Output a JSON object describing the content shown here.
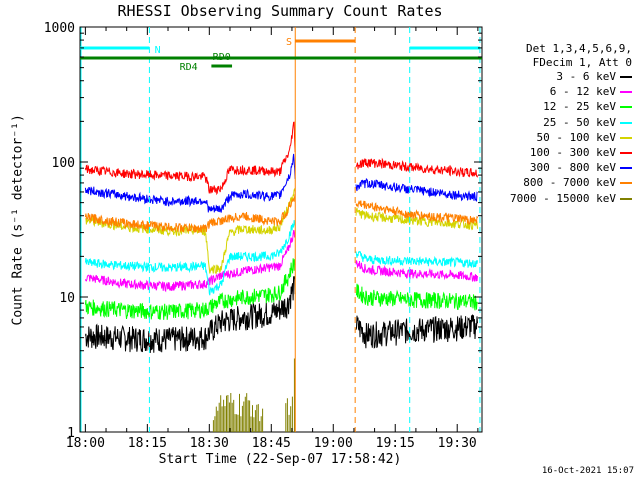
{
  "chart_data": {
    "type": "line",
    "title": "RHESSI Observing Summary Count Rates",
    "xlabel": "Start Time (22-Sep-07 17:58:42)",
    "ylabel_html": "Count Rate (s⁻¹ detector⁻¹)",
    "yscale": "log",
    "ylim": [
      1,
      1000
    ],
    "xlim_minutes": [
      -1.3,
      96
    ],
    "x_ticks": [
      {
        "label": "18:00",
        "t": 0
      },
      {
        "label": "18:15",
        "t": 15
      },
      {
        "label": "18:30",
        "t": 30
      },
      {
        "label": "18:45",
        "t": 45
      },
      {
        "label": "19:00",
        "t": 60
      },
      {
        "label": "19:15",
        "t": 75
      },
      {
        "label": "19:30",
        "t": 90
      }
    ],
    "y_ticks": [
      {
        "label": "1",
        "v": 1
      },
      {
        "label": "10",
        "v": 10
      },
      {
        "label": "100",
        "v": 100
      },
      {
        "label": "1000",
        "v": 1000
      }
    ],
    "legend_header": [
      "Det 1,3,4,5,6,9,",
      "FDecim 1, Att 0"
    ],
    "series": [
      {
        "name": "3 - 6 keV",
        "color": "#000000",
        "values": [
          [
            0,
            5.2
          ],
          [
            10,
            5.0
          ],
          [
            20,
            4.9
          ],
          [
            29,
            5.1
          ],
          [
            33,
            6.6
          ],
          [
            38,
            7.2
          ],
          [
            44,
            7.6
          ],
          [
            46,
            7.8
          ],
          [
            49,
            9.0
          ],
          [
            50.5,
            12
          ],
          [
            68,
            5.3
          ],
          [
            78,
            5.7
          ],
          [
            90,
            6.0
          ],
          [
            95,
            6.2
          ]
        ]
      },
      {
        "name": "6 - 12 keV",
        "color": "#ff00ff",
        "values": [
          [
            0,
            14
          ],
          [
            10,
            12.5
          ],
          [
            20,
            12
          ],
          [
            29,
            12.5
          ],
          [
            33,
            14.5
          ],
          [
            38,
            15.5
          ],
          [
            44,
            16.5
          ],
          [
            47,
            17
          ],
          [
            49,
            22
          ],
          [
            50.5,
            30
          ],
          [
            68,
            16
          ],
          [
            78,
            15
          ],
          [
            90,
            14.5
          ],
          [
            95,
            14
          ]
        ]
      },
      {
        "name": "12 - 25 keV",
        "color": "#00ff00",
        "values": [
          [
            0,
            8.5
          ],
          [
            10,
            8.0
          ],
          [
            20,
            7.8
          ],
          [
            29,
            8.1
          ],
          [
            33,
            9.4
          ],
          [
            38,
            10
          ],
          [
            44,
            10.4
          ],
          [
            47,
            10.8
          ],
          [
            49,
            14
          ],
          [
            50.5,
            18
          ],
          [
            68,
            10
          ],
          [
            78,
            9.6
          ],
          [
            90,
            9.4
          ],
          [
            95,
            9.2
          ]
        ]
      },
      {
        "name": "25 - 50 keV",
        "color": "#00ffff",
        "values": [
          [
            0,
            18
          ],
          [
            10,
            17
          ],
          [
            20,
            16.5
          ],
          [
            29,
            17
          ],
          [
            30,
            11
          ],
          [
            33,
            12.5
          ],
          [
            35,
            20
          ],
          [
            38,
            20
          ],
          [
            44,
            20
          ],
          [
            47,
            21
          ],
          [
            49,
            27
          ],
          [
            50.5,
            35
          ],
          [
            68,
            19
          ],
          [
            78,
            18.5
          ],
          [
            90,
            18
          ],
          [
            95,
            17.8
          ]
        ]
      },
      {
        "name": "50 - 100 keV",
        "color": "#d4d400",
        "values": [
          [
            0,
            37
          ],
          [
            10,
            33
          ],
          [
            20,
            31
          ],
          [
            29,
            31
          ],
          [
            30,
            16
          ],
          [
            33,
            16.5
          ],
          [
            35,
            30
          ],
          [
            38,
            32
          ],
          [
            44,
            31
          ],
          [
            47,
            33
          ],
          [
            49,
            45
          ],
          [
            50.5,
            60
          ],
          [
            68,
            40
          ],
          [
            78,
            37
          ],
          [
            90,
            35
          ],
          [
            95,
            34
          ]
        ]
      },
      {
        "name": "100 - 300 keV",
        "color": "#ff0000",
        "values": [
          [
            0,
            88
          ],
          [
            10,
            82
          ],
          [
            20,
            79
          ],
          [
            29,
            78
          ],
          [
            30,
            62
          ],
          [
            33,
            64
          ],
          [
            35,
            88
          ],
          [
            38,
            88
          ],
          [
            44,
            86
          ],
          [
            47,
            84
          ],
          [
            49.5,
            120
          ],
          [
            50.5,
            195
          ],
          [
            51,
            60
          ],
          [
            68,
            100
          ],
          [
            78,
            92
          ],
          [
            90,
            85
          ],
          [
            95,
            82
          ]
        ]
      },
      {
        "name": "300 - 800 keV",
        "color": "#0000ff",
        "values": [
          [
            0,
            62
          ],
          [
            10,
            56
          ],
          [
            20,
            51
          ],
          [
            29,
            52
          ],
          [
            30,
            44
          ],
          [
            33,
            45
          ],
          [
            35,
            56
          ],
          [
            38,
            58
          ],
          [
            44,
            56
          ],
          [
            47,
            56
          ],
          [
            49.5,
            80
          ],
          [
            50.5,
            110
          ],
          [
            51,
            40
          ],
          [
            68,
            70
          ],
          [
            78,
            63
          ],
          [
            90,
            57
          ],
          [
            95,
            55
          ]
        ]
      },
      {
        "name": "800 - 7000 keV",
        "color": "#ff8000",
        "values": [
          [
            0,
            39
          ],
          [
            10,
            35
          ],
          [
            20,
            33
          ],
          [
            29,
            32
          ],
          [
            30,
            35
          ],
          [
            33,
            37
          ],
          [
            35,
            38
          ],
          [
            38,
            40
          ],
          [
            44,
            37
          ],
          [
            47,
            36
          ],
          [
            49,
            44
          ],
          [
            50.5,
            55
          ],
          [
            68,
            48
          ],
          [
            78,
            41
          ],
          [
            90,
            38
          ],
          [
            95,
            37
          ]
        ]
      },
      {
        "name": "7000 - 15000 keV",
        "color": "#808000",
        "values": [
          [
            32,
            1.9
          ],
          [
            40,
            1.9
          ],
          [
            50,
            2.5
          ]
        ]
      }
    ],
    "annotations": {
      "markers": [
        {
          "label": "N",
          "color": "#00ffff"
        },
        {
          "label": "S",
          "color": "#ff8000"
        },
        {
          "label": "RD0",
          "color": "#008000"
        },
        {
          "label": "RD4",
          "color": "#008000"
        }
      ],
      "intervals": {
        "night": [
          [
            -1.3,
            15.5
          ],
          [
            78.5,
            95.5
          ]
        ],
        "saa": [
          [
            50.8,
            65.3
          ]
        ],
        "rd0": [
          [
            -1.3,
            96
          ]
        ],
        "rd4": [
          [
            30.5,
            35.5
          ]
        ]
      }
    }
  },
  "footer": {
    "stamp": "16-Oct-2021 15:07"
  }
}
